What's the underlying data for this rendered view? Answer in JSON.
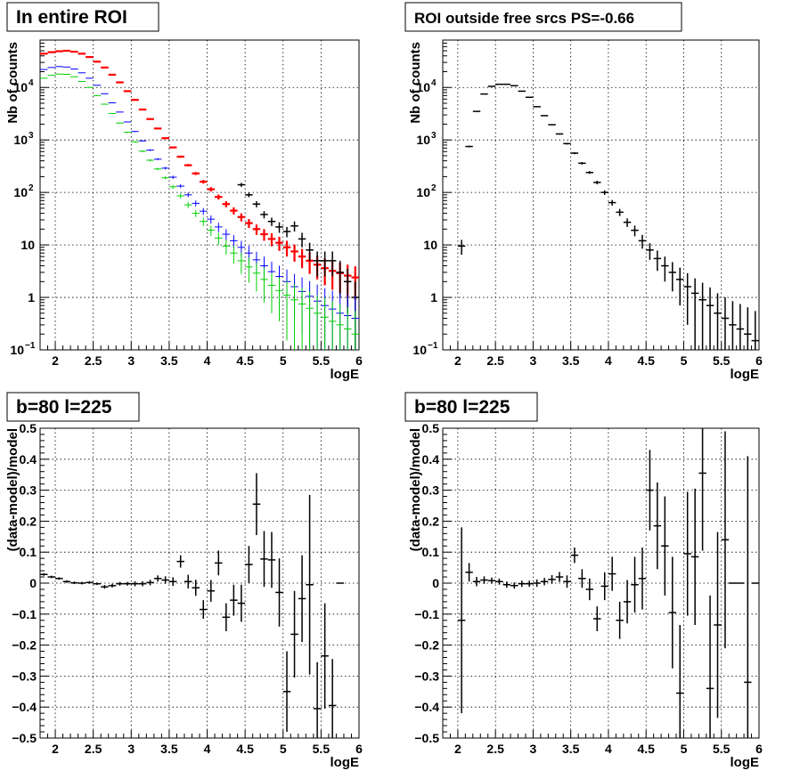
{
  "chart_data": [
    {
      "type": "scatter",
      "title": "In entire ROI",
      "xlabel": "logE",
      "ylabel": "Nb of counts",
      "xlim": [
        1.8,
        6.0
      ],
      "ylim": [
        0.1,
        80000
      ],
      "y_scale": "log",
      "grid": true,
      "xticks": [
        "2",
        "2.5",
        "3",
        "3.5",
        "4",
        "4.5",
        "5",
        "5.5",
        "6"
      ],
      "yticks": [
        {
          "value": 0.1,
          "label": "10",
          "sup": "−1"
        },
        {
          "value": 1,
          "label": "1",
          "sup": ""
        },
        {
          "value": 10,
          "label": "10",
          "sup": ""
        },
        {
          "value": 100,
          "label": "10",
          "sup": "2"
        },
        {
          "value": 1000,
          "label": "10",
          "sup": "3"
        },
        {
          "value": 10000,
          "label": "10",
          "sup": "4"
        }
      ],
      "series": [
        {
          "color": "#ff0000",
          "lw": 2.2,
          "cap": 0,
          "x": [
            1.85,
            1.95,
            2.05,
            2.15,
            2.25,
            2.35,
            2.45,
            2.55,
            2.65,
            2.75,
            2.85,
            2.95,
            3.05,
            3.15,
            3.25,
            3.35,
            3.45,
            3.55,
            3.65,
            3.75,
            3.85,
            3.95,
            4.05,
            4.15,
            4.25,
            4.35,
            4.45,
            4.55,
            4.65,
            4.75,
            4.85,
            4.95,
            5.05,
            5.15,
            5.25,
            5.35,
            5.45,
            5.55,
            5.65,
            5.75,
            5.85,
            5.95
          ],
          "y": [
            44000,
            47000,
            49000,
            50000,
            48000,
            44000,
            38000,
            31000,
            24000,
            17500,
            12500,
            8500,
            5800,
            3800,
            2500,
            1650,
            1080,
            720,
            480,
            330,
            230,
            160,
            115,
            82,
            60,
            45,
            34,
            26,
            20,
            16,
            13,
            11,
            9,
            7.5,
            6,
            5,
            4.2,
            3.6,
            3.2,
            2.9,
            2.6,
            2.4
          ],
          "err": [
            200,
            200,
            200,
            200,
            200,
            200,
            190,
            170,
            150,
            130,
            110,
            90,
            75,
            60,
            50,
            40,
            33,
            27,
            22,
            18,
            15,
            13,
            11,
            9,
            8,
            7,
            6,
            5,
            4.5,
            4,
            3.6,
            3.3,
            3,
            2.7,
            2.4,
            2.2,
            2,
            1.9,
            1.8,
            1.7,
            1.6,
            1.5
          ]
        },
        {
          "color": "#000000",
          "lw": 1.5,
          "cap": 0,
          "x": [
            4.45,
            4.55,
            4.65,
            4.75,
            4.85,
            4.95,
            5.05,
            5.15,
            5.25,
            5.35,
            5.45,
            5.55,
            5.65,
            5.75,
            5.85,
            5.95
          ],
          "y": [
            140,
            90,
            60,
            38,
            28,
            22,
            18,
            23,
            13,
            8,
            5,
            5,
            5,
            3,
            2,
            1
          ],
          "err": [
            12,
            9,
            8,
            6,
            5,
            5,
            4,
            5,
            4,
            3,
            2.5,
            2.5,
            2.5,
            2,
            1.5,
            1
          ]
        },
        {
          "color": "#0000ff",
          "lw": 1,
          "cap": 0,
          "x": [
            1.85,
            1.95,
            2.05,
            2.15,
            2.25,
            2.35,
            2.45,
            2.55,
            2.65,
            2.75,
            2.85,
            2.95,
            3.05,
            3.15,
            3.25,
            3.35,
            3.45,
            3.55,
            3.65,
            3.75,
            3.85,
            3.95,
            4.05,
            4.15,
            4.25,
            4.35,
            4.45,
            4.55,
            4.65,
            4.75,
            4.85,
            4.95,
            5.05,
            5.15,
            5.25,
            5.35,
            5.45,
            5.55,
            5.65,
            5.75,
            5.85,
            5.95
          ],
          "y": [
            22000,
            24000,
            25000,
            24500,
            22500,
            19000,
            15000,
            11000,
            7600,
            5100,
            3400,
            2200,
            1450,
            960,
            640,
            430,
            290,
            195,
            132,
            90,
            62,
            44,
            31,
            22,
            16,
            12,
            9,
            7,
            5.2,
            4,
            3.1,
            2.5,
            2,
            1.6,
            1.3,
            1.05,
            0.85,
            0.7,
            0.6,
            0.5,
            0.45,
            0.4
          ],
          "err": [
            150,
            150,
            150,
            150,
            140,
            130,
            120,
            100,
            85,
            70,
            57,
            46,
            37,
            30,
            25,
            20,
            17,
            14,
            11,
            9,
            8,
            6.5,
            5.5,
            4.5,
            4,
            3.4,
            3,
            2.6,
            2.2,
            2,
            1.7,
            1.5,
            1.4,
            1.2,
            1.1,
            1,
            0.9,
            0.8,
            0.75,
            0.7,
            0.68,
            0.66
          ]
        },
        {
          "color": "#00d000",
          "lw": 1,
          "cap": 0,
          "x": [
            1.85,
            1.95,
            2.05,
            2.15,
            2.25,
            2.35,
            2.45,
            2.55,
            2.65,
            2.75,
            2.85,
            2.95,
            3.05,
            3.15,
            3.25,
            3.35,
            3.45,
            3.55,
            3.65,
            3.75,
            3.85,
            3.95,
            4.05,
            4.15,
            4.25,
            4.35,
            4.45,
            4.55,
            4.65,
            4.75,
            4.85,
            4.95,
            5.05,
            5.15,
            5.25,
            5.35,
            5.45,
            5.55,
            5.65,
            5.75,
            5.85,
            5.95
          ],
          "y": [
            15000,
            17000,
            18000,
            17800,
            16000,
            13000,
            10000,
            7000,
            4800,
            3200,
            2100,
            1400,
            920,
            610,
            410,
            280,
            190,
            128,
            86,
            58,
            40,
            28,
            19,
            13.5,
            9.5,
            7,
            5,
            3.8,
            2.9,
            2.2,
            1.7,
            1.35,
            1.1,
            0.9,
            0.75,
            0.62,
            0.5,
            0.42,
            0.35,
            0.3,
            0.25,
            0.2
          ],
          "err": [
            120,
            120,
            120,
            120,
            110,
            100,
            90,
            80,
            65,
            55,
            45,
            37,
            30,
            25,
            20,
            16,
            13,
            11,
            9,
            7.5,
            6,
            5,
            4.2,
            3.6,
            3,
            2.6,
            2.2,
            1.9,
            1.6,
            1.4,
            1.2,
            1,
            0.95,
            0.85,
            0.75,
            0.68,
            0.6,
            0.55,
            0.5,
            0.45,
            0.4,
            0.35
          ]
        }
      ]
    },
    {
      "type": "scatter",
      "title": "ROI outside free srcs PS=-0.66",
      "xlabel": "logE",
      "ylabel": "Nb of counts",
      "xlim": [
        1.8,
        6.0
      ],
      "ylim": [
        0.1,
        80000
      ],
      "y_scale": "log",
      "grid": true,
      "xticks": [
        "2",
        "2.5",
        "3",
        "3.5",
        "4",
        "4.5",
        "5",
        "5.5",
        "6"
      ],
      "yticks": [
        {
          "value": 0.1,
          "label": "10",
          "sup": "−1"
        },
        {
          "value": 1,
          "label": "1",
          "sup": ""
        },
        {
          "value": 10,
          "label": "10",
          "sup": ""
        },
        {
          "value": 100,
          "label": "10",
          "sup": "2"
        },
        {
          "value": 1000,
          "label": "10",
          "sup": "3"
        },
        {
          "value": 10000,
          "label": "10",
          "sup": "4"
        }
      ],
      "series": [
        {
          "color": "#000000",
          "lw": 1.5,
          "cap": 0,
          "x": [
            2.05,
            2.15,
            2.25,
            2.35,
            2.45,
            2.55,
            2.65,
            2.75,
            2.85,
            2.95,
            3.05,
            3.15,
            3.25,
            3.35,
            3.45,
            3.55,
            3.65,
            3.75,
            3.85,
            3.95,
            4.05,
            4.15,
            4.25,
            4.35,
            4.45,
            4.55,
            4.65,
            4.75,
            4.85,
            4.95,
            5.05,
            5.15,
            5.25,
            5.35,
            5.45,
            5.55,
            5.65,
            5.75,
            5.85,
            5.95
          ],
          "y": [
            9.5,
            750,
            3500,
            7500,
            10500,
            11500,
            11500,
            10800,
            8500,
            6500,
            4300,
            2900,
            1950,
            1300,
            850,
            560,
            360,
            240,
            155,
            100,
            64,
            42,
            27,
            19,
            12,
            8,
            5.5,
            4,
            3,
            2.2,
            1.6,
            1.2,
            0.9,
            0.7,
            0.5,
            0.4,
            0.3,
            0.25,
            0.2,
            0.15
          ],
          "err": [
            3,
            27,
            60,
            90,
            100,
            105,
            105,
            100,
            90,
            80,
            65,
            55,
            45,
            36,
            30,
            24,
            19,
            15,
            12,
            10,
            8,
            6.5,
            5,
            4.4,
            3.5,
            2.8,
            2.3,
            2,
            1.7,
            1.5,
            1.3,
            1.1,
            1,
            0.85,
            0.7,
            0.6,
            0.55,
            0.5,
            0.45,
            0.4
          ]
        }
      ],
      "overlay": {
        "color": "#000000",
        "lw": 1.5,
        "x": [
          4.25,
          4.35,
          4.45,
          4.55,
          4.65,
          4.75,
          4.85,
          4.95,
          5.05,
          5.15,
          5.25,
          5.35,
          5.45,
          5.55,
          5.65,
          5.75,
          5.85,
          5.95
        ],
        "y": [
          21,
          18,
          15,
          13,
          10,
          8,
          7,
          5,
          3,
          2,
          1.5,
          1.1,
          0.8,
          0.6,
          0.4,
          0.3,
          0.25,
          0.2
        ],
        "err": [
          5,
          4.5,
          4,
          3.5,
          3,
          2.8,
          2.5,
          2.2,
          1.6,
          1.4,
          1,
          0.8,
          0.7,
          0.6,
          0.4,
          0.3,
          0.25,
          0.2
        ]
      }
    },
    {
      "type": "scatter",
      "title": "b=80 l=225",
      "xlabel": "logE",
      "ylabel": "(data-model)/model",
      "xlim": [
        1.8,
        6.0
      ],
      "ylim": [
        -0.5,
        0.5
      ],
      "grid": true,
      "xticks": [
        "2",
        "2.5",
        "3",
        "3.5",
        "4",
        "4.5",
        "5",
        "5.5",
        "6"
      ],
      "yticks_vals": [
        -0.5,
        -0.4,
        -0.3,
        -0.2,
        -0.1,
        0,
        0.1,
        0.2,
        0.3,
        0.4,
        0.5
      ],
      "yticks": [
        "−0.5",
        "−0.4",
        "−0.3",
        "−0.2",
        "−0.1",
        "0",
        "0.1",
        "0.2",
        "0.3",
        "0.4",
        "0.5"
      ],
      "series": [
        {
          "color": "#000000",
          "lw": 1.5,
          "cap": 0,
          "x": [
            1.85,
            1.95,
            2.05,
            2.15,
            2.25,
            2.35,
            2.45,
            2.55,
            2.65,
            2.75,
            2.85,
            2.95,
            3.05,
            3.15,
            3.25,
            3.35,
            3.45,
            3.55,
            3.65,
            3.75,
            3.85,
            3.95,
            4.05,
            4.15,
            4.25,
            4.35,
            4.45,
            4.55,
            4.65,
            4.75,
            4.85,
            4.95,
            5.05,
            5.15,
            5.25,
            5.35,
            5.45,
            5.55,
            5.65,
            5.75
          ],
          "y": [
            0.028,
            0.02,
            0.015,
            0.005,
            0.001,
            0.0,
            0.002,
            -0.002,
            -0.012,
            -0.008,
            -0.002,
            -0.002,
            -0.002,
            -0.002,
            0.002,
            0.015,
            0.01,
            0.005,
            0.07,
            0.005,
            -0.015,
            -0.085,
            -0.025,
            0.065,
            -0.11,
            -0.055,
            -0.065,
            0.06,
            0.255,
            0.078,
            0.075,
            -0.03,
            -0.35,
            -0.165,
            -0.05,
            -0.005,
            -0.405,
            -0.235,
            -0.395,
            0.0
          ],
          "err": [
            0.004,
            0.004,
            0.004,
            0.004,
            0.004,
            0.004,
            0.004,
            0.004,
            0.006,
            0.006,
            0.006,
            0.006,
            0.008,
            0.008,
            0.009,
            0.01,
            0.012,
            0.014,
            0.02,
            0.022,
            0.026,
            0.03,
            0.035,
            0.04,
            0.045,
            0.05,
            0.06,
            0.06,
            0.1,
            0.09,
            0.09,
            0.11,
            0.13,
            0.14,
            0.14,
            0.29,
            0.15,
            0.17,
            0.15,
            0.0
          ]
        }
      ]
    },
    {
      "type": "scatter",
      "title": "b=80 l=225",
      "xlabel": "logE",
      "ylabel": "(data-model)/model",
      "xlim": [
        1.8,
        6.0
      ],
      "ylim": [
        -0.5,
        0.5
      ],
      "grid": true,
      "xticks": [
        "2",
        "2.5",
        "3",
        "3.5",
        "4",
        "4.5",
        "5",
        "5.5",
        "6"
      ],
      "yticks_vals": [
        -0.5,
        -0.4,
        -0.3,
        -0.2,
        -0.1,
        0,
        0.1,
        0.2,
        0.3,
        0.4,
        0.5
      ],
      "yticks": [
        "−0.5",
        "−0.4",
        "−0.3",
        "−0.2",
        "−0.1",
        "0",
        "0.1",
        "0.2",
        "0.3",
        "0.4",
        "0.5"
      ],
      "series": [
        {
          "color": "#000000",
          "lw": 1.5,
          "cap": 0,
          "x": [
            2.05,
            2.15,
            2.25,
            2.35,
            2.45,
            2.55,
            2.65,
            2.75,
            2.85,
            2.95,
            3.05,
            3.15,
            3.25,
            3.35,
            3.45,
            3.55,
            3.65,
            3.75,
            3.85,
            3.95,
            4.05,
            4.15,
            4.25,
            4.35,
            4.45,
            4.55,
            4.65,
            4.75,
            4.85,
            4.95,
            5.05,
            5.15,
            5.25,
            5.35,
            5.45,
            5.55,
            5.65,
            5.75,
            5.85,
            5.95
          ],
          "y": [
            -0.12,
            0.035,
            0.005,
            0.01,
            0.008,
            0.005,
            -0.005,
            -0.008,
            -0.002,
            -0.002,
            0.0,
            0.005,
            0.012,
            0.02,
            0.005,
            0.09,
            0.015,
            -0.02,
            -0.115,
            -0.01,
            0.03,
            -0.12,
            -0.06,
            -0.005,
            0.015,
            0.3,
            0.185,
            0.12,
            -0.095,
            -0.355,
            0.095,
            0.085,
            0.355,
            -0.34,
            -0.135,
            0.14,
            0.0,
            0.0,
            -0.32,
            0.0
          ],
          "err": [
            0.3,
            0.03,
            0.015,
            0.012,
            0.01,
            0.01,
            0.01,
            0.01,
            0.01,
            0.01,
            0.012,
            0.012,
            0.014,
            0.016,
            0.02,
            0.025,
            0.03,
            0.035,
            0.04,
            0.045,
            0.055,
            0.06,
            0.07,
            0.09,
            0.1,
            0.13,
            0.14,
            0.16,
            0.18,
            0.22,
            0.2,
            0.22,
            0.25,
            0.3,
            0.3,
            0.35,
            0,
            0,
            0.73,
            0
          ]
        }
      ]
    }
  ]
}
